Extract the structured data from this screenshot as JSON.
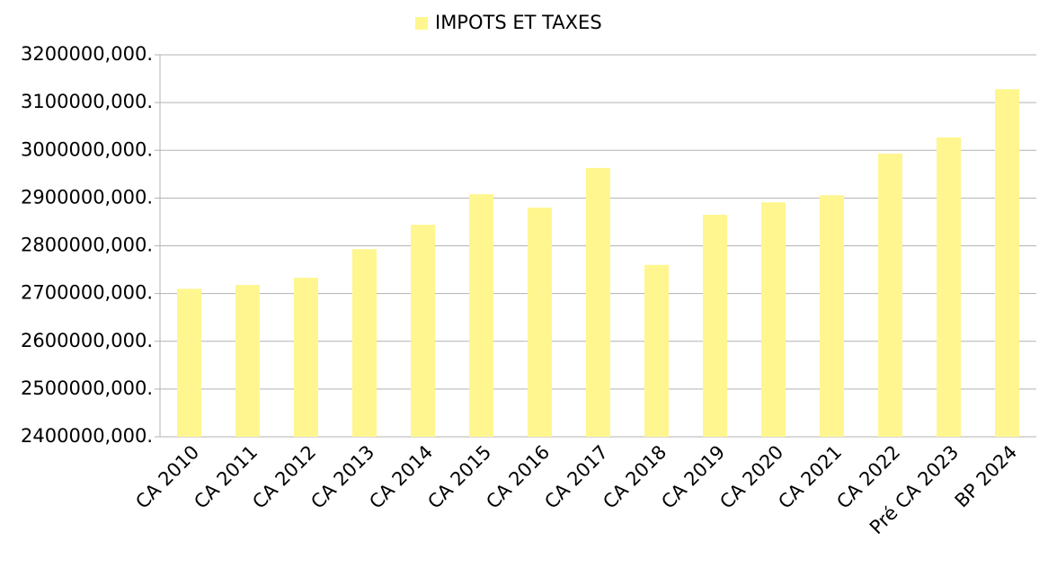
{
  "chart_data": {
    "type": "bar",
    "categories": [
      "CA 2010",
      "CA 2011",
      "CA 2012",
      "CA 2013",
      "CA 2014",
      "CA 2015",
      "CA 2016",
      "CA 2017",
      "CA 2018",
      "CA 2019",
      "CA 2020",
      "CA 2021",
      "CA 2022",
      "Pré CA 2023",
      "BP 2024"
    ],
    "series": [
      {
        "name": "IMPOTS ET TAXES",
        "color": "#fff68f",
        "values": [
          2710000,
          2718000,
          2733000,
          2793000,
          2844000,
          2908000,
          2880000,
          2963000,
          2760000,
          2865000,
          2891000,
          2906000,
          2993000,
          3027000,
          3128000
        ]
      }
    ],
    "ylim": [
      2400000,
      3200000
    ],
    "yticks": [
      {
        "value": 2400000,
        "label": "2400000,000."
      },
      {
        "value": 2500000,
        "label": "2500000,000."
      },
      {
        "value": 2600000,
        "label": "2600000,000."
      },
      {
        "value": 2700000,
        "label": "2700000,000."
      },
      {
        "value": 2800000,
        "label": "2800000,000."
      },
      {
        "value": 2900000,
        "label": "2900000,000."
      },
      {
        "value": 3000000,
        "label": "3000000,000."
      },
      {
        "value": 3100000,
        "label": "3100000,000."
      },
      {
        "value": 3200000,
        "label": "3200000,000."
      }
    ],
    "grid": true,
    "legend": "top"
  }
}
